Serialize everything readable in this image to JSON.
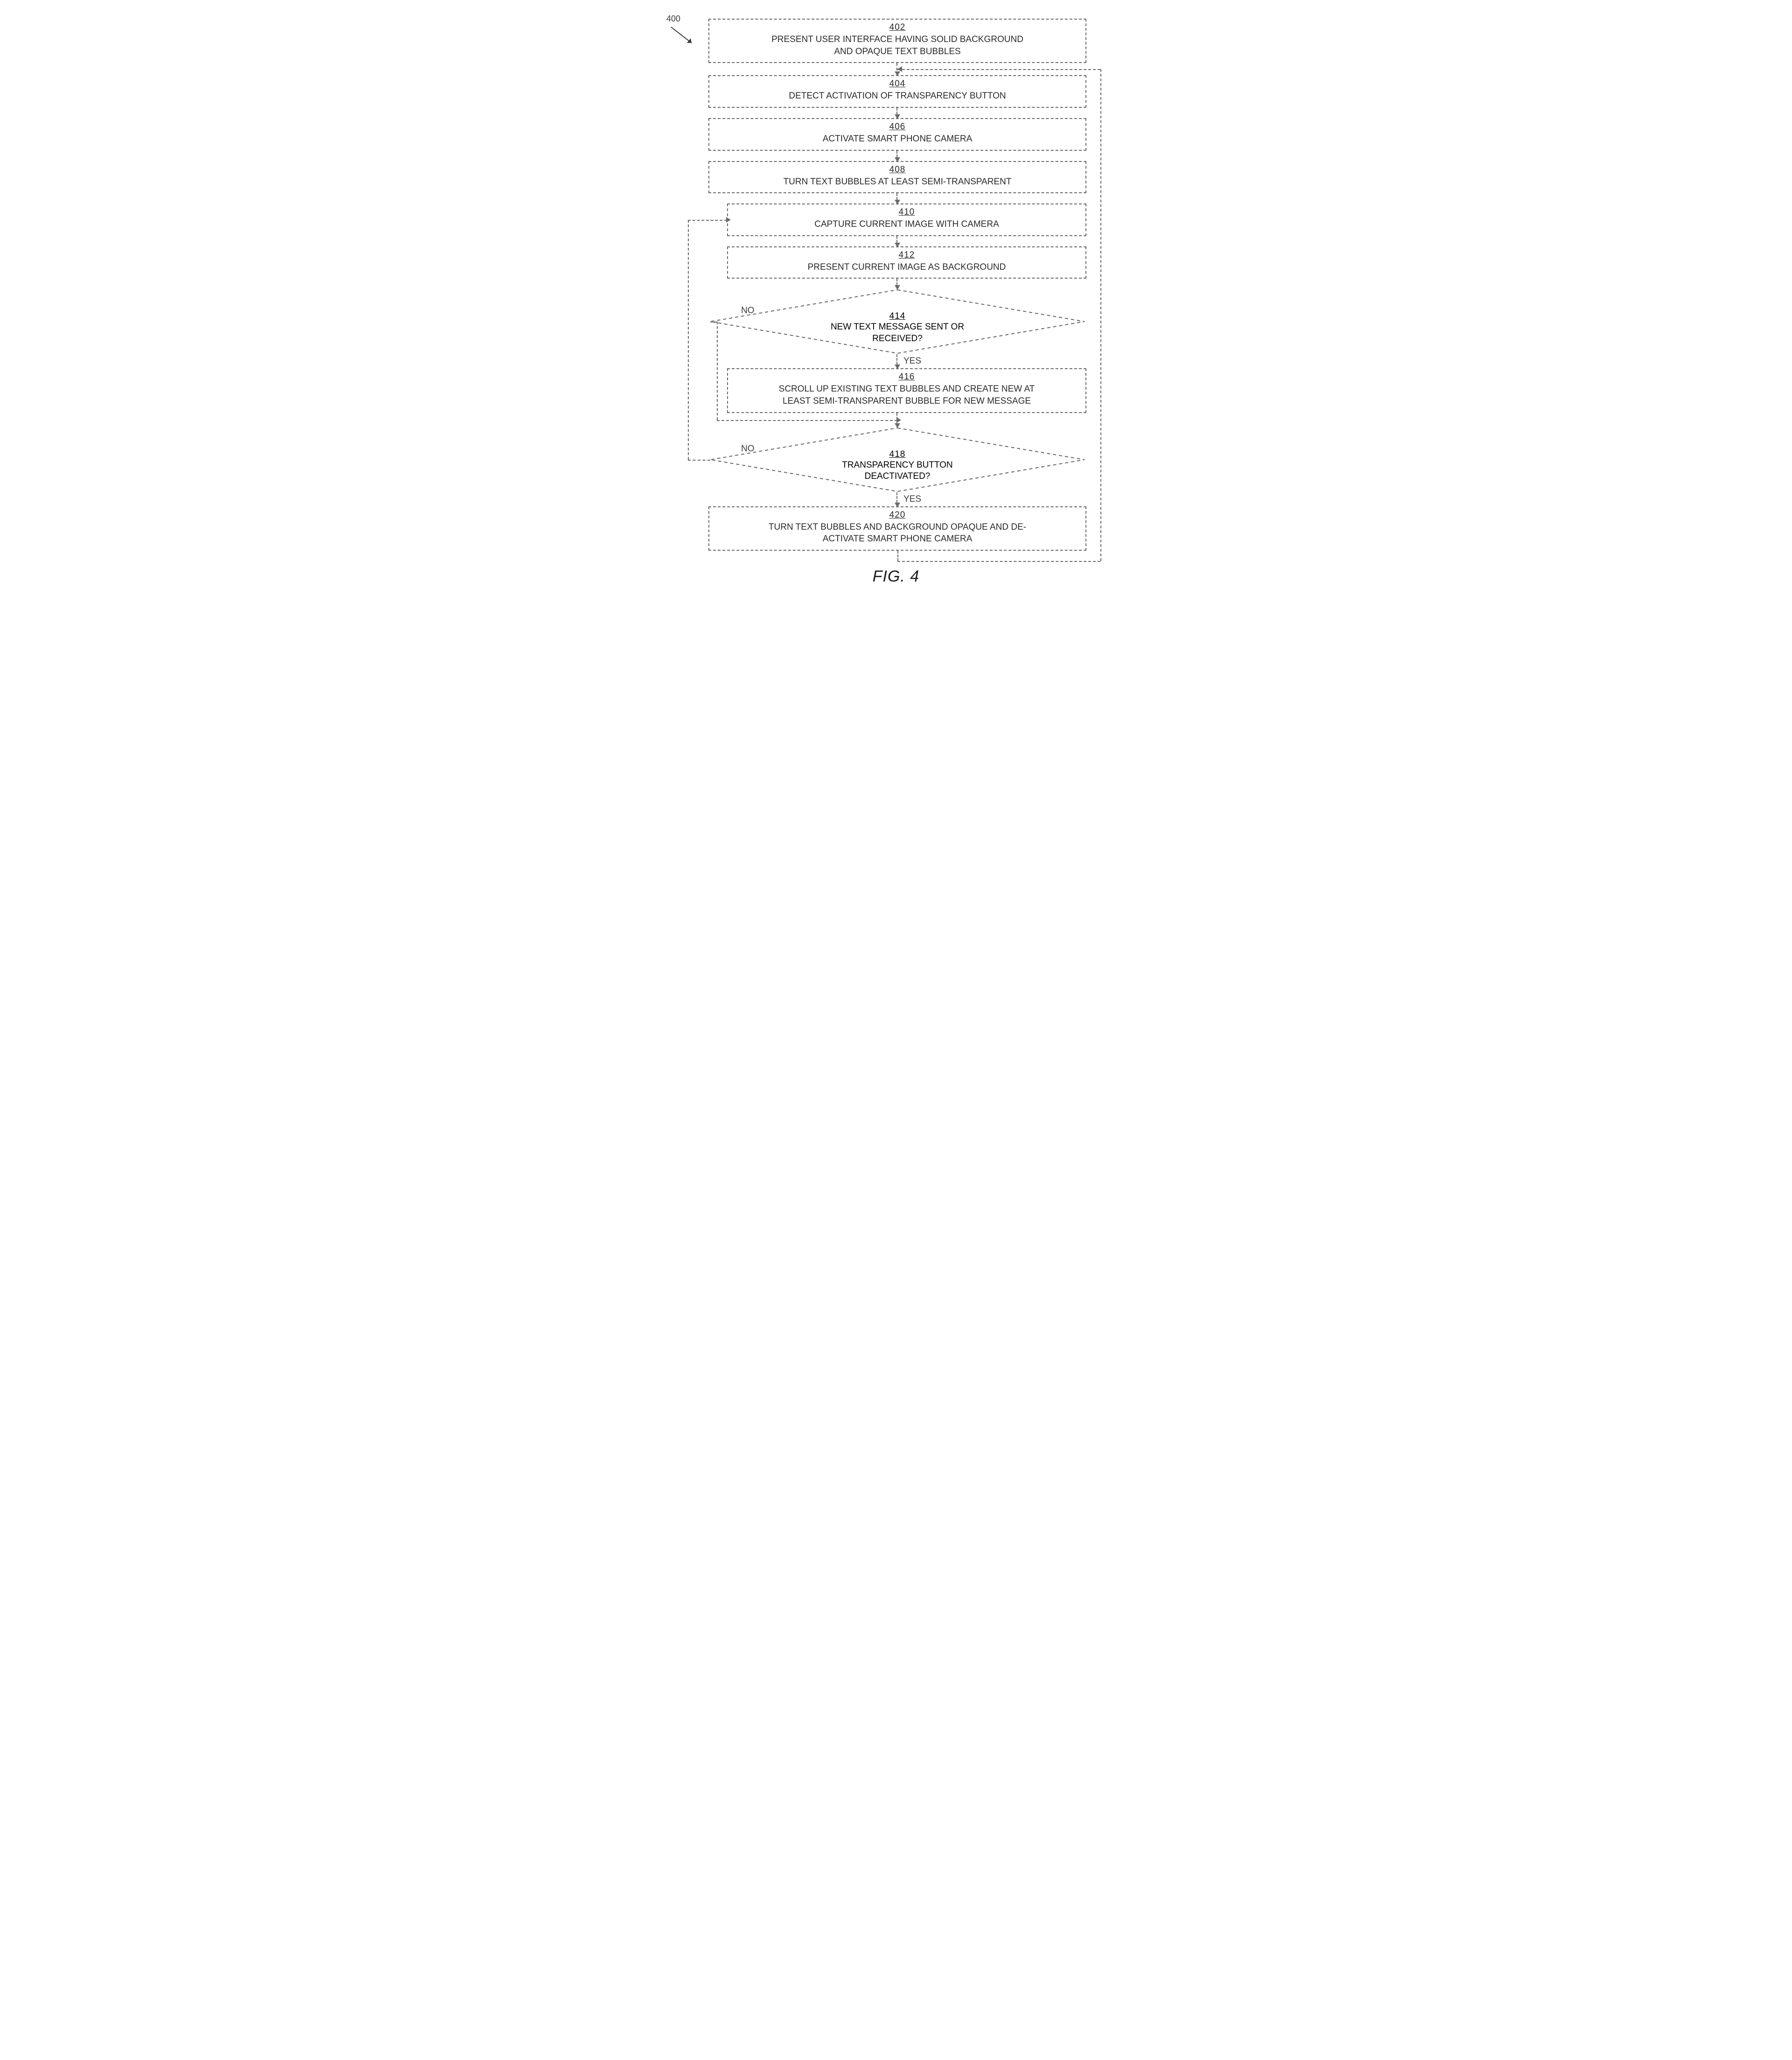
{
  "figure": {
    "ref_number": "400",
    "caption": "FIG. 4",
    "stroke": "#6a6a6a",
    "text_color": "#2a2a2a",
    "font_size_pt": 14,
    "background_color": "#ffffff",
    "steps": {
      "s402": {
        "num": "402",
        "txt": "PRESENT USER INTERFACE HAVING SOLID BACKGROUND\nAND OPAQUE TEXT BUBBLES"
      },
      "s404": {
        "num": "404",
        "txt": "DETECT ACTIVATION OF TRANSPARENCY BUTTON"
      },
      "s406": {
        "num": "406",
        "txt": "ACTIVATE SMART PHONE CAMERA"
      },
      "s408": {
        "num": "408",
        "txt": "TURN TEXT BUBBLES AT LEAST SEMI-TRANSPARENT"
      },
      "s410": {
        "num": "410",
        "txt": "CAPTURE CURRENT IMAGE WITH CAMERA"
      },
      "s412": {
        "num": "412",
        "txt": "PRESENT CURRENT IMAGE AS BACKGROUND"
      },
      "s416": {
        "num": "416",
        "txt": "SCROLL UP EXISTING TEXT BUBBLES AND CREATE NEW AT\nLEAST SEMI-TRANSPARENT BUBBLE FOR NEW MESSAGE"
      },
      "s420": {
        "num": "420",
        "txt": "TURN TEXT BUBBLES AND BACKGROUND OPAQUE AND DE-\nACTIVATE SMART PHONE CAMERA"
      }
    },
    "decisions": {
      "d414": {
        "num": "414",
        "txt": "NEW TEXT MESSAGE SENT OR\nRECEIVED?",
        "yes_label": "YES",
        "no_label": "NO"
      },
      "d418": {
        "num": "418",
        "txt": "TRANSPARENCY BUTTON\nDEACTIVATED?",
        "yes_label": "YES",
        "no_label": "NO"
      }
    },
    "edges": [
      {
        "from": "402",
        "to": "404"
      },
      {
        "from": "404",
        "to": "406"
      },
      {
        "from": "406",
        "to": "408"
      },
      {
        "from": "408",
        "to": "410"
      },
      {
        "from": "410",
        "to": "412"
      },
      {
        "from": "412",
        "to": "414"
      },
      {
        "from": "414",
        "to": "416",
        "label": "YES"
      },
      {
        "from": "414",
        "to": "418",
        "label": "NO",
        "via": "left-loop"
      },
      {
        "from": "416",
        "to": "418"
      },
      {
        "from": "418",
        "to": "420",
        "label": "YES"
      },
      {
        "from": "418",
        "to": "410",
        "label": "NO",
        "via": "left-loop"
      },
      {
        "from": "420",
        "to": "404",
        "via": "right-loop"
      }
    ]
  }
}
